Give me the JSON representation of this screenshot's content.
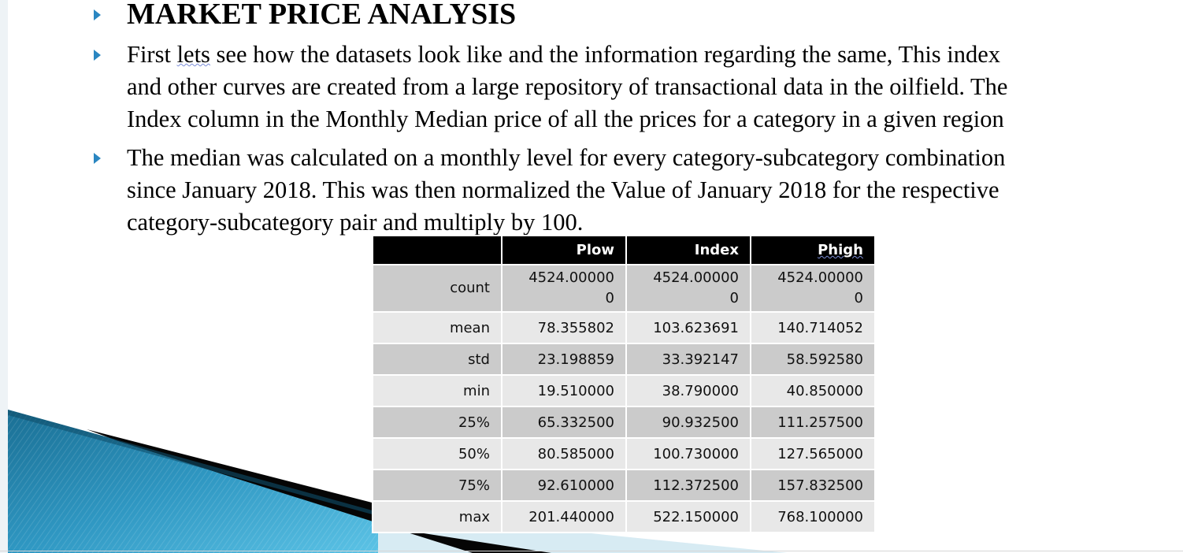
{
  "slide": {
    "title": "MARKET PRICE ANALYSIS",
    "bullet1": {
      "line1_pre": "First ",
      "line1_underlined": "lets",
      "line1_post": " see how the datasets look like and the information regarding the same, This index",
      "line2": "and other curves are created from a large repository of transactional data in the oilfield. The",
      "line3": "Index column in the Monthly Median price of all the prices for a category in a given region"
    },
    "bullet2": {
      "line1": "The median was calculated on a monthly level for every category-subcategory combination",
      "line2": "since January 2018. This was then normalized the Value of January 2018 for the respective",
      "line3": "category-subcategory pair and multiply by 100."
    }
  },
  "table": {
    "headers": [
      "",
      "Plow",
      "Index",
      "Phigh"
    ],
    "rows": [
      {
        "label": "count",
        "plow": "4524.00000",
        "plow_wrap": "0",
        "index": "4524.00000",
        "index_wrap": "0",
        "phigh": "4524.00000",
        "phigh_wrap": "0"
      },
      {
        "label": "mean",
        "plow": "78.355802",
        "index": "103.623691",
        "phigh": "140.714052"
      },
      {
        "label": "std",
        "plow": "23.198859",
        "index": "33.392147",
        "phigh": "58.592580"
      },
      {
        "label": "min",
        "plow": "19.510000",
        "index": "38.790000",
        "phigh": "40.850000"
      },
      {
        "label": "25%",
        "plow": "65.332500",
        "index": "90.932500",
        "phigh": "111.257500"
      },
      {
        "label": "50%",
        "plow": "80.585000",
        "index": "100.730000",
        "phigh": "127.565000"
      },
      {
        "label": "75%",
        "plow": "92.610000",
        "index": "112.372500",
        "phigh": "157.832500"
      },
      {
        "label": "max",
        "plow": "201.440000",
        "index": "522.150000",
        "phigh": "768.100000"
      }
    ]
  },
  "colors": {
    "bullet": "#2a86c1",
    "header_bg": "#000000",
    "row_dark": "#cbcbcb",
    "row_light": "#e8e8e8"
  },
  "icons": {
    "bullet": "triangle-right-icon"
  }
}
